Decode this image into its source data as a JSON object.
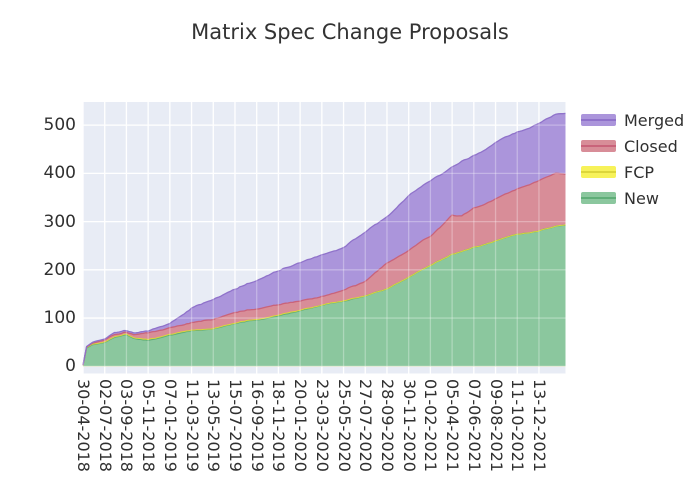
{
  "chart_data": {
    "type": "area",
    "stacked": true,
    "title": "Matrix Spec Change Proposals",
    "xlabel": "",
    "ylabel": "",
    "grid": true,
    "legend_position": "right-top-outside",
    "y_ticks": [
      0,
      100,
      200,
      300,
      400,
      500
    ],
    "ylim": [
      -15,
      548
    ],
    "x_tick_labels": [
      "30-04-2018",
      "02-07-2018",
      "03-09-2018",
      "05-11-2018",
      "07-01-2019",
      "11-03-2019",
      "13-05-2019",
      "15-07-2019",
      "16-09-2019",
      "18-11-2019",
      "20-01-2020",
      "23-03-2020",
      "25-05-2020",
      "27-07-2020",
      "28-09-2020",
      "30-11-2020",
      "01-02-2021",
      "05-04-2021",
      "07-06-2021",
      "09-08-2021",
      "11-10-2021",
      "13-12-2021"
    ],
    "x_tick_weeks": [
      0,
      9,
      18,
      27,
      36,
      45,
      54,
      63,
      72,
      81,
      90,
      99,
      108,
      117,
      126,
      135,
      144,
      153,
      162,
      171,
      180,
      189
    ],
    "x_range_weeks": [
      0,
      200
    ],
    "series_order_bottom_to_top": [
      "New",
      "FCP",
      "Closed",
      "Merged"
    ],
    "legend_order": [
      "Merged",
      "Closed",
      "FCP",
      "New"
    ],
    "samples": {
      "weeks": [
        0,
        1.5,
        4,
        9,
        13,
        18,
        21,
        27,
        36,
        45,
        54,
        63,
        72,
        81,
        90,
        99,
        108,
        117,
        126,
        135,
        144,
        153,
        157,
        162,
        171,
        180,
        189,
        196,
        200
      ],
      "New": [
        2,
        38,
        45,
        50,
        62,
        68,
        60,
        55,
        66,
        75,
        79,
        88,
        97,
        107,
        117,
        128,
        137,
        148,
        159,
        183,
        207,
        231,
        236,
        245,
        258,
        272,
        279,
        288,
        292
      ],
      "FCP": [
        0,
        1,
        1,
        1,
        1,
        1,
        1,
        2,
        2,
        2,
        2,
        2,
        2,
        2,
        2,
        2,
        2,
        2,
        2,
        2,
        2,
        2,
        2,
        2,
        2,
        2,
        2,
        2,
        3
      ],
      "Closed": [
        0,
        1,
        2,
        4,
        5,
        5,
        9,
        15,
        14,
        15,
        17,
        20,
        20,
        21,
        19,
        18,
        21,
        29,
        53,
        56,
        60,
        82,
        74,
        81,
        85,
        92,
        102,
        108,
        104
      ],
      "Merged": [
        1,
        1,
        2,
        2,
        5,
        6,
        6,
        5,
        11,
        32,
        44,
        49,
        60,
        70,
        79,
        87,
        87,
        101,
        96,
        114,
        114,
        99,
        112,
        109,
        115,
        117,
        117,
        120,
        124
      ]
    },
    "colors": {
      "figure_bg": "#ffffff",
      "plot_bg": "#e8ecf5",
      "grid": "#ffffff",
      "text": "#333333",
      "New": {
        "fill": "#8bc79e",
        "edge": "#5fae78"
      },
      "FCP": {
        "fill": "#f7f259",
        "edge": "#dcd63a"
      },
      "Closed": {
        "fill": "#d88d98",
        "edge": "#c9637a"
      },
      "Merged": {
        "fill": "#ab95db",
        "edge": "#8f72ca"
      }
    }
  }
}
